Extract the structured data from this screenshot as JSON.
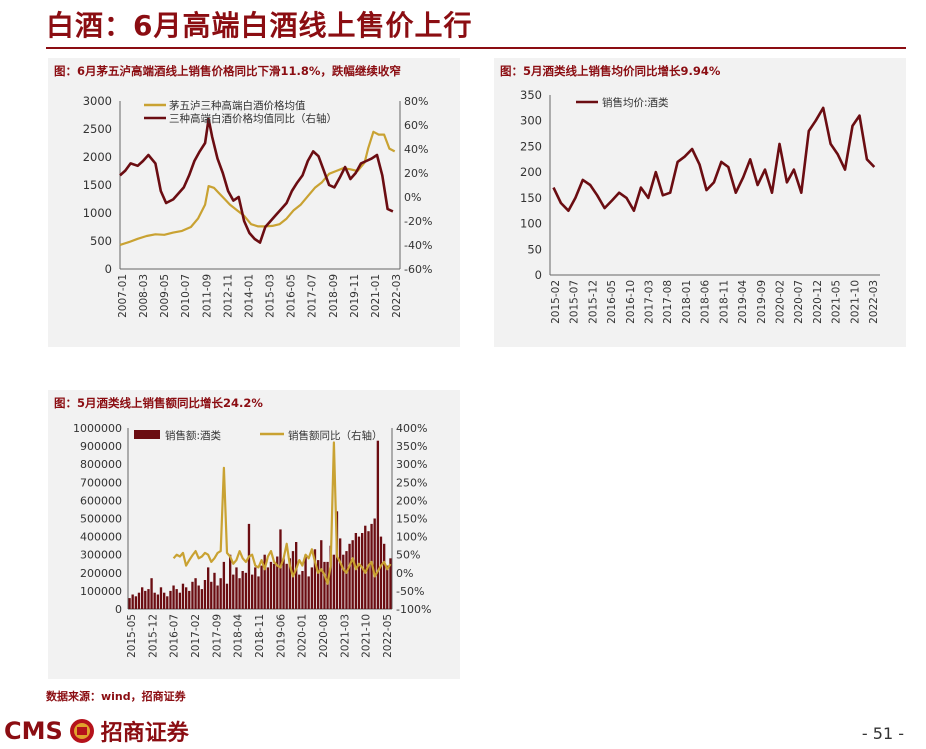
{
  "page": {
    "title": "白酒：6月高端白酒线上售价上行",
    "source": "数据来源：wind，招商证券",
    "page_number": "- 51 -",
    "logo_text": "CMS",
    "logo_cn": "招商证券",
    "brand_color": "#8b0d12",
    "gold_color": "#c9a232"
  },
  "chart_data": [
    {
      "type": "line",
      "caption": "图：6月茅五泸高端酒线上销售价格同比下滑11.8%，跌幅继续收窄",
      "x_tick_labels": [
        "2007-01",
        "2008-03",
        "2009-05",
        "2010-07",
        "2011-09",
        "2012-11",
        "2014-01",
        "2015-03",
        "2016-05",
        "2017-07",
        "2018-09",
        "2019-11",
        "2021-01",
        "2022-03"
      ],
      "left_axis": {
        "ylim": [
          0,
          3000
        ],
        "ticks": [
          "0",
          "500",
          "1000",
          "1500",
          "2000",
          "2500",
          "3000"
        ]
      },
      "right_axis": {
        "ylim": [
          -60,
          80
        ],
        "ticks": [
          "-60%",
          "-40%",
          "-20%",
          "0%",
          "20%",
          "40%",
          "60%",
          "80%"
        ]
      },
      "series": [
        {
          "name": "茅五泸三种高端白酒价格均值",
          "axis": "left",
          "color": "#c9a232",
          "x": [
            2007.0,
            2007.5,
            2008.0,
            2008.5,
            2009.0,
            2009.5,
            2010.0,
            2010.5,
            2011.0,
            2011.4,
            2011.8,
            2012.0,
            2012.3,
            2012.6,
            2012.9,
            2013.2,
            2013.6,
            2014.0,
            2014.4,
            2014.8,
            2015.2,
            2015.6,
            2016.0,
            2016.4,
            2016.8,
            2017.2,
            2017.6,
            2018.0,
            2018.4,
            2018.8,
            2019.2,
            2019.6,
            2020.0,
            2020.4,
            2020.8,
            2021.0,
            2021.3,
            2021.6,
            2021.9,
            2022.2,
            2022.5
          ],
          "y": [
            430,
            480,
            540,
            590,
            620,
            610,
            650,
            680,
            750,
            900,
            1150,
            1480,
            1450,
            1350,
            1250,
            1150,
            1050,
            950,
            800,
            760,
            760,
            770,
            800,
            900,
            1050,
            1150,
            1300,
            1450,
            1550,
            1700,
            1750,
            1800,
            1780,
            1750,
            1900,
            2150,
            2450,
            2400,
            2400,
            2150,
            2100
          ]
        },
        {
          "name": "三种高端白酒价格均值同比（右轴）",
          "axis": "right",
          "color": "#6b0d12",
          "x": [
            2007.0,
            2007.3,
            2007.6,
            2008.0,
            2008.3,
            2008.6,
            2009.0,
            2009.3,
            2009.6,
            2010.0,
            2010.3,
            2010.6,
            2010.9,
            2011.2,
            2011.5,
            2011.8,
            2012.0,
            2012.2,
            2012.5,
            2012.8,
            2013.1,
            2013.4,
            2013.7,
            2014.0,
            2014.3,
            2014.6,
            2014.9,
            2015.2,
            2015.5,
            2015.8,
            2016.1,
            2016.4,
            2016.7,
            2017.0,
            2017.3,
            2017.6,
            2017.9,
            2018.2,
            2018.5,
            2018.8,
            2019.1,
            2019.4,
            2019.7,
            2020.0,
            2020.3,
            2020.6,
            2020.9,
            2021.2,
            2021.5,
            2021.8,
            2022.1,
            2022.4
          ],
          "y": [
            18,
            22,
            28,
            26,
            30,
            35,
            28,
            5,
            -5,
            -2,
            3,
            8,
            18,
            30,
            38,
            45,
            65,
            50,
            32,
            20,
            5,
            -3,
            0,
            -20,
            -30,
            -35,
            -38,
            -25,
            -20,
            -15,
            -10,
            -5,
            5,
            12,
            18,
            30,
            38,
            34,
            22,
            10,
            8,
            16,
            25,
            15,
            20,
            28,
            30,
            32,
            35,
            18,
            -10,
            -12
          ]
        }
      ]
    },
    {
      "type": "line",
      "caption": "图：5月酒类线上销售均价同比增长9.94%",
      "x_tick_labels": [
        "2015-02",
        "2015-07",
        "2015-12",
        "2016-05",
        "2016-10",
        "2017-03",
        "2017-08",
        "2018-01",
        "2018-06",
        "2018-11",
        "2019-04",
        "2019-09",
        "2020-02",
        "2020-07",
        "2020-12",
        "2021-05",
        "2021-10",
        "2022-03"
      ],
      "y_axis": {
        "ylim": [
          0,
          350
        ],
        "ticks": [
          "0",
          "50",
          "100",
          "150",
          "200",
          "250",
          "300",
          "350"
        ]
      },
      "series": [
        {
          "name": "销售均价:酒类",
          "color": "#6b0d12",
          "x": [
            2015.08,
            2015.25,
            2015.42,
            2015.58,
            2015.75,
            2015.92,
            2016.08,
            2016.25,
            2016.42,
            2016.58,
            2016.75,
            2016.92,
            2017.08,
            2017.25,
            2017.42,
            2017.58,
            2017.75,
            2017.92,
            2018.08,
            2018.25,
            2018.42,
            2018.58,
            2018.75,
            2018.92,
            2019.08,
            2019.25,
            2019.42,
            2019.58,
            2019.75,
            2019.92,
            2020.08,
            2020.25,
            2020.42,
            2020.58,
            2020.75,
            2020.92,
            2021.08,
            2021.25,
            2021.42,
            2021.58,
            2021.75,
            2021.92,
            2022.08,
            2022.25,
            2022.42
          ],
          "y": [
            170,
            140,
            125,
            150,
            185,
            175,
            155,
            130,
            145,
            160,
            150,
            125,
            170,
            150,
            200,
            155,
            160,
            220,
            230,
            245,
            215,
            165,
            180,
            220,
            210,
            160,
            190,
            225,
            175,
            205,
            160,
            255,
            180,
            205,
            160,
            280,
            300,
            325,
            255,
            235,
            205,
            290,
            310,
            225,
            210
          ]
        }
      ]
    },
    {
      "type": "bar",
      "caption": "图：5月酒类线上销售额同比增长24.2%",
      "x_tick_labels": [
        "2015-05",
        "2015-12",
        "2016-07",
        "2017-02",
        "2017-09",
        "2018-04",
        "2018-11",
        "2019-06",
        "2020-01",
        "2020-08",
        "2021-03",
        "2021-10",
        "2022-05"
      ],
      "left_axis": {
        "ylim": [
          0,
          1000000
        ],
        "ticks": [
          "0",
          "100000",
          "200000",
          "300000",
          "400000",
          "500000",
          "600000",
          "700000",
          "800000",
          "900000",
          "1000000"
        ]
      },
      "right_axis": {
        "ylim": [
          -100,
          400
        ],
        "ticks": [
          "-100%",
          "-50%",
          "0%",
          "50%",
          "100%",
          "150%",
          "200%",
          "250%",
          "300%",
          "350%",
          "400%"
        ]
      },
      "series": [
        {
          "name": "销售额:酒类",
          "axis": "left",
          "type": "bar",
          "color": "#6b0d12",
          "values": [
            60000,
            80000,
            70000,
            90000,
            120000,
            100000,
            110000,
            170000,
            90000,
            80000,
            120000,
            90000,
            70000,
            100000,
            130000,
            110000,
            90000,
            140000,
            120000,
            100000,
            150000,
            170000,
            130000,
            110000,
            160000,
            230000,
            150000,
            200000,
            130000,
            170000,
            260000,
            140000,
            300000,
            190000,
            230000,
            170000,
            210000,
            200000,
            470000,
            190000,
            230000,
            180000,
            240000,
            300000,
            230000,
            260000,
            250000,
            290000,
            440000,
            280000,
            250000,
            280000,
            320000,
            370000,
            190000,
            210000,
            300000,
            180000,
            230000,
            330000,
            270000,
            380000,
            260000,
            260000,
            350000,
            300000,
            540000,
            390000,
            300000,
            320000,
            360000,
            380000,
            420000,
            400000,
            420000,
            460000,
            430000,
            470000,
            500000,
            930000,
            400000,
            360000,
            240000,
            280000
          ]
        },
        {
          "name": "销售额同比（右轴）",
          "axis": "right",
          "type": "line",
          "color": "#c9a232",
          "x": [
            14,
            15,
            16,
            17,
            18,
            19,
            20,
            21,
            22,
            23,
            24,
            25,
            26,
            27,
            28,
            29,
            30,
            31,
            32,
            33,
            34,
            35,
            36,
            37,
            38,
            39,
            40,
            41,
            42,
            43,
            44,
            45,
            46,
            47,
            48,
            49,
            50,
            51,
            52,
            53,
            54,
            55,
            56,
            57,
            58,
            59,
            60,
            61,
            62,
            63,
            64,
            65,
            66,
            67,
            68,
            69,
            70,
            71,
            72,
            73,
            74,
            75,
            76,
            77,
            78,
            79,
            80,
            81,
            82,
            83
          ],
          "y": [
            40,
            50,
            45,
            55,
            20,
            35,
            48,
            60,
            40,
            45,
            55,
            50,
            30,
            40,
            55,
            60,
            290,
            55,
            45,
            25,
            35,
            60,
            40,
            30,
            45,
            50,
            20,
            15,
            35,
            10,
            45,
            60,
            30,
            20,
            15,
            40,
            80,
            20,
            -10,
            10,
            35,
            20,
            50,
            40,
            65,
            30,
            0,
            10,
            -5,
            -30,
            20,
            360,
            45,
            30,
            10,
            0,
            20,
            40,
            10,
            25,
            15,
            0,
            20,
            30,
            -10,
            5,
            20,
            30,
            10,
            24
          ]
        }
      ]
    }
  ]
}
